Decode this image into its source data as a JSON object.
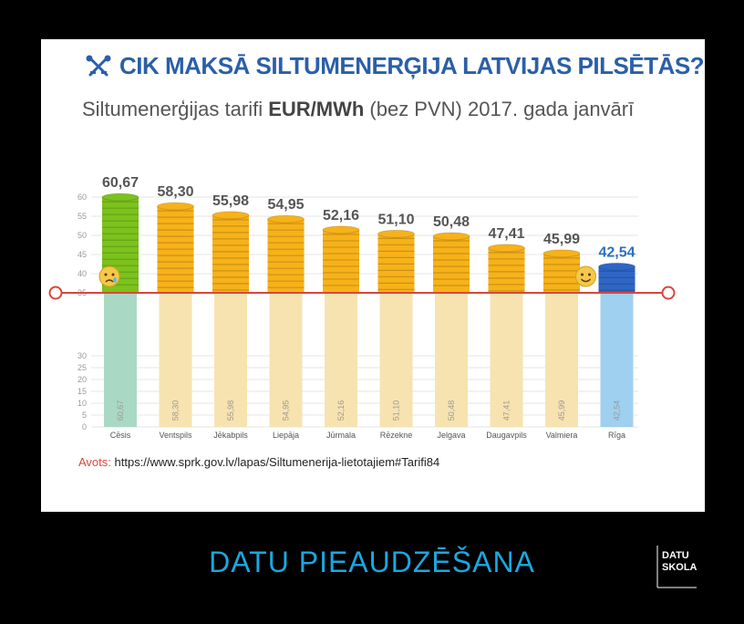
{
  "header": {
    "title": "CIK MAKSĀ SILTUMENERĢIJA LATVIJAS PILSĒTĀS?",
    "subtitle_pre": "Siltumenerģijas tarifi ",
    "subtitle_bold": "EUR/MWh",
    "subtitle_post": " (bez PVN) 2017. gada janvārī"
  },
  "source": {
    "label": "Avots:",
    "url": "https://www.sprk.gov.lv/lapas/Siltumenerija-lietotajiem#Tarifi84"
  },
  "footer": {
    "title": "DATU PIEAUDZĒŠANA"
  },
  "logo": {
    "line1": "DATU",
    "line2": "SKOLA"
  },
  "colors": {
    "title": "#2b5fa8",
    "green_coin": "#7cc21d",
    "gold_coin": "#f7b21a",
    "blue_coin": "#2f66c6",
    "bar_light": "#f7e3b0",
    "bar_green": "#a9d9c4",
    "bar_blue": "#9fd0ef",
    "cut_line": "#d9463b",
    "footer": "#1aa8e0"
  },
  "chart_data": {
    "type": "bar",
    "categories": [
      "Cēsis",
      "Ventspils",
      "Jēkabpils",
      "Liepāja",
      "Jūrmala",
      "Rēzekne",
      "Jelgava",
      "Daugavpils",
      "Valmiera",
      "Rīga"
    ],
    "values": [
      60.67,
      58.3,
      55.98,
      54.95,
      52.16,
      51.1,
      50.48,
      47.41,
      45.99,
      42.54
    ],
    "value_labels": [
      "60,67",
      "58,30",
      "55,98",
      "54,95",
      "52,16",
      "51,10",
      "50,48",
      "47,41",
      "45,99",
      "42,54"
    ],
    "highlight": {
      "max": "Cēsis",
      "min": "Rīga"
    },
    "upper_ticks": [
      35,
      40,
      45,
      50,
      55,
      60
    ],
    "lower_ticks": [
      0,
      5,
      10,
      15,
      20,
      25,
      30
    ],
    "axis_break_at": 35,
    "grid": true,
    "title": "Siltumenerģijas tarifi EUR/MWh (bez PVN) 2017. gada janvārī"
  }
}
